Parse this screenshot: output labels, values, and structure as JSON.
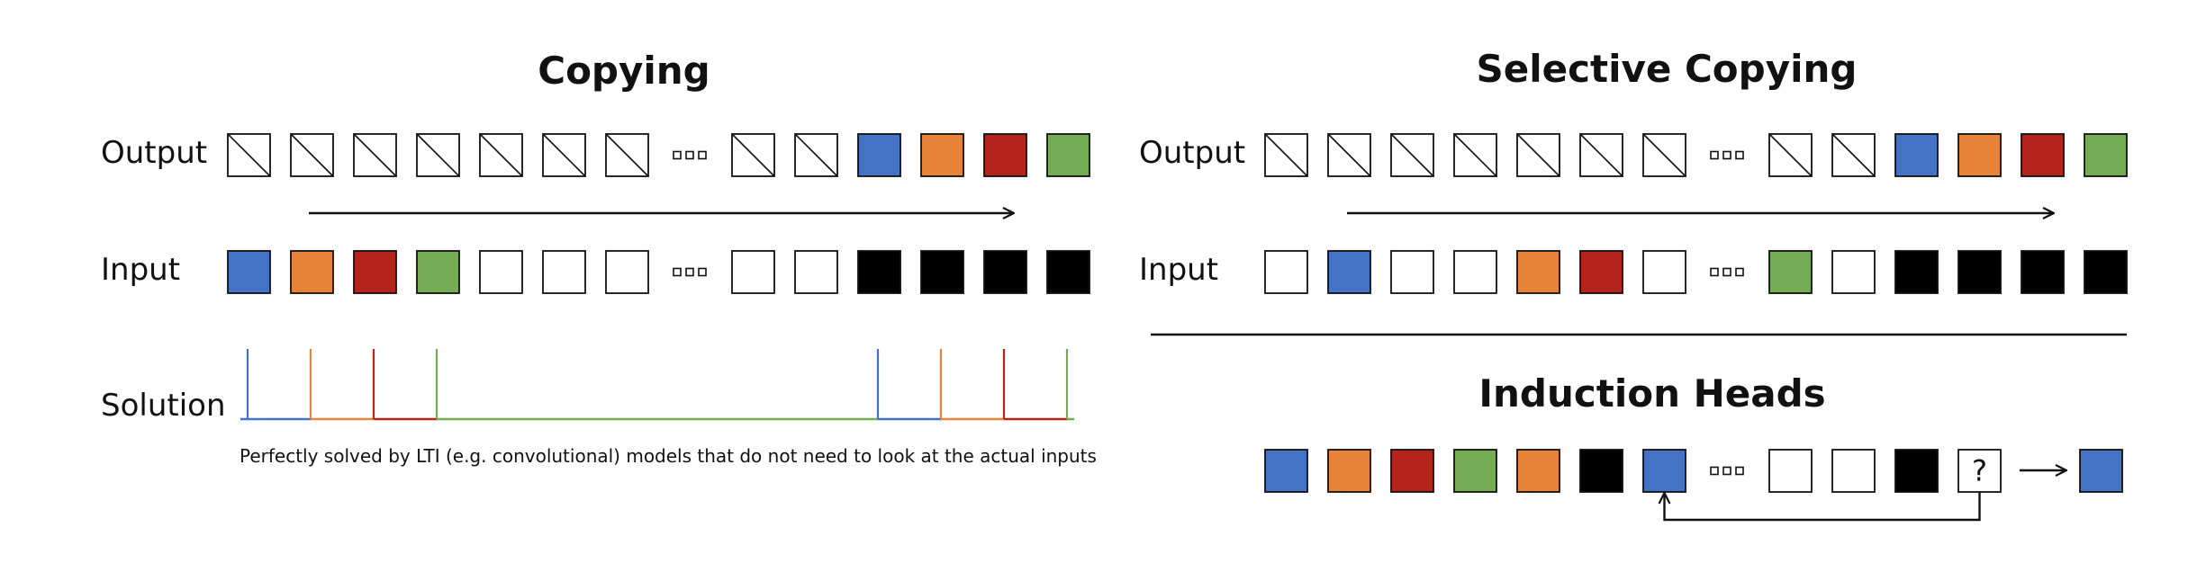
{
  "colors": {
    "blue": "#4472c4",
    "orange": "#e8833a",
    "red": "#b5241b",
    "green": "#76ab56",
    "black": "#000000",
    "white": "#ffffff",
    "stroke": "#111111"
  },
  "copying": {
    "title": "Copying",
    "output_label": "Output",
    "input_label": "Input",
    "solution_label": "Solution",
    "caption": "Perfectly solved by LTI (e.g. convolutional) models that do not need to look at the actual inputs",
    "output_row": [
      "hatch",
      "hatch",
      "hatch",
      "hatch",
      "hatch",
      "hatch",
      "hatch",
      "ellipsis",
      "hatch",
      "hatch",
      "blue",
      "orange",
      "red",
      "green"
    ],
    "input_row": [
      "blue",
      "orange",
      "red",
      "green",
      "white",
      "white",
      "white",
      "ellipsis",
      "white",
      "white",
      "black",
      "black",
      "black",
      "black"
    ],
    "solution_spikes": [
      {
        "color": "blue",
        "slot": 0
      },
      {
        "color": "orange",
        "slot": 1
      },
      {
        "color": "red",
        "slot": 2
      },
      {
        "color": "green",
        "slot": 3
      },
      {
        "color": "blue",
        "slot": 10
      },
      {
        "color": "orange",
        "slot": 11
      },
      {
        "color": "red",
        "slot": 12
      },
      {
        "color": "green",
        "slot": 13
      }
    ]
  },
  "selective_copying": {
    "title": "Selective Copying",
    "output_label": "Output",
    "input_label": "Input",
    "output_row": [
      "hatch",
      "hatch",
      "hatch",
      "hatch",
      "hatch",
      "hatch",
      "hatch",
      "ellipsis",
      "hatch",
      "hatch",
      "blue",
      "orange",
      "red",
      "green"
    ],
    "input_row": [
      "white",
      "blue",
      "white",
      "white",
      "orange",
      "red",
      "white",
      "ellipsis",
      "green",
      "white",
      "black",
      "black",
      "black",
      "black"
    ]
  },
  "induction_heads": {
    "title": "Induction Heads",
    "row": [
      "blue",
      "orange",
      "red",
      "green",
      "orange",
      "black",
      "blue",
      "ellipsis",
      "white",
      "white",
      "black",
      "query"
    ],
    "query_symbol": "?",
    "answer": "blue",
    "loop_from_slot": 11,
    "loop_to_slot": 6
  }
}
